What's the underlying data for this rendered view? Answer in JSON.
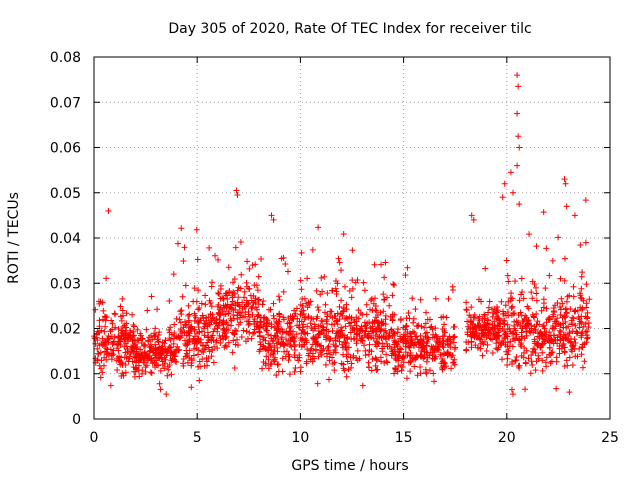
{
  "chart_data": {
    "type": "scatter",
    "title": "Day 305 of 2020, Rate Of TEC Index for receiver tilc",
    "xlabel": "GPS time / hours",
    "ylabel": "ROTI / TECUs",
    "xlim": [
      0,
      25
    ],
    "ylim": [
      0,
      0.08
    ],
    "x_ticks": [
      0,
      5,
      10,
      15,
      20,
      25
    ],
    "x_tick_labels": [
      "0",
      "5",
      "10",
      "15",
      "20",
      "25"
    ],
    "y_ticks": [
      0,
      0.01,
      0.02,
      0.03,
      0.04,
      0.05,
      0.06,
      0.07,
      0.08
    ],
    "y_tick_labels": [
      "0",
      "0.01",
      "0.02",
      "0.03",
      "0.04",
      "0.05",
      "0.06",
      "0.07",
      "0.08"
    ],
    "grid": true,
    "marker": "plus",
    "color": "#ff0000",
    "series": [
      {
        "name": "ROTI",
        "density_profile": [
          {
            "x_start": 0.0,
            "x_end": 2.0,
            "y_center": 0.017,
            "y_spread": 0.008
          },
          {
            "x_start": 2.0,
            "x_end": 4.0,
            "y_center": 0.015,
            "y_spread": 0.006
          },
          {
            "x_start": 4.0,
            "x_end": 6.0,
            "y_center": 0.019,
            "y_spread": 0.009
          },
          {
            "x_start": 6.0,
            "x_end": 8.0,
            "y_center": 0.023,
            "y_spread": 0.008
          },
          {
            "x_start": 8.0,
            "x_end": 10.0,
            "y_center": 0.018,
            "y_spread": 0.008
          },
          {
            "x_start": 10.0,
            "x_end": 14.5,
            "y_center": 0.019,
            "y_spread": 0.009
          },
          {
            "x_start": 14.5,
            "x_end": 17.5,
            "y_center": 0.016,
            "y_spread": 0.006
          },
          {
            "x_start": 18.0,
            "x_end": 20.0,
            "y_center": 0.02,
            "y_spread": 0.006
          },
          {
            "x_start": 20.0,
            "x_end": 21.5,
            "y_center": 0.021,
            "y_spread": 0.012
          },
          {
            "x_start": 21.5,
            "x_end": 24.0,
            "y_center": 0.02,
            "y_spread": 0.01
          }
        ],
        "peaks": [
          {
            "x": 20.5,
            "y": 0.076
          },
          {
            "x": 20.55,
            "y": 0.0735
          },
          {
            "x": 20.5,
            "y": 0.0675
          },
          {
            "x": 20.55,
            "y": 0.0625
          },
          {
            "x": 20.6,
            "y": 0.06
          },
          {
            "x": 20.5,
            "y": 0.056
          },
          {
            "x": 20.2,
            "y": 0.0545
          },
          {
            "x": 20.3,
            "y": 0.05
          },
          {
            "x": 19.9,
            "y": 0.052
          },
          {
            "x": 19.8,
            "y": 0.049
          },
          {
            "x": 20.6,
            "y": 0.0475
          },
          {
            "x": 22.8,
            "y": 0.053
          },
          {
            "x": 22.85,
            "y": 0.052
          },
          {
            "x": 22.9,
            "y": 0.047
          },
          {
            "x": 23.3,
            "y": 0.045
          },
          {
            "x": 6.9,
            "y": 0.0505
          },
          {
            "x": 6.95,
            "y": 0.0495
          },
          {
            "x": 0.7,
            "y": 0.046
          },
          {
            "x": 8.6,
            "y": 0.045
          },
          {
            "x": 8.7,
            "y": 0.044
          },
          {
            "x": 18.3,
            "y": 0.045
          },
          {
            "x": 18.4,
            "y": 0.044
          },
          {
            "x": 20.25,
            "y": 0.0065
          },
          {
            "x": 20.3,
            "y": 0.0055
          },
          {
            "x": 3.5,
            "y": 0.0055
          }
        ]
      }
    ]
  }
}
